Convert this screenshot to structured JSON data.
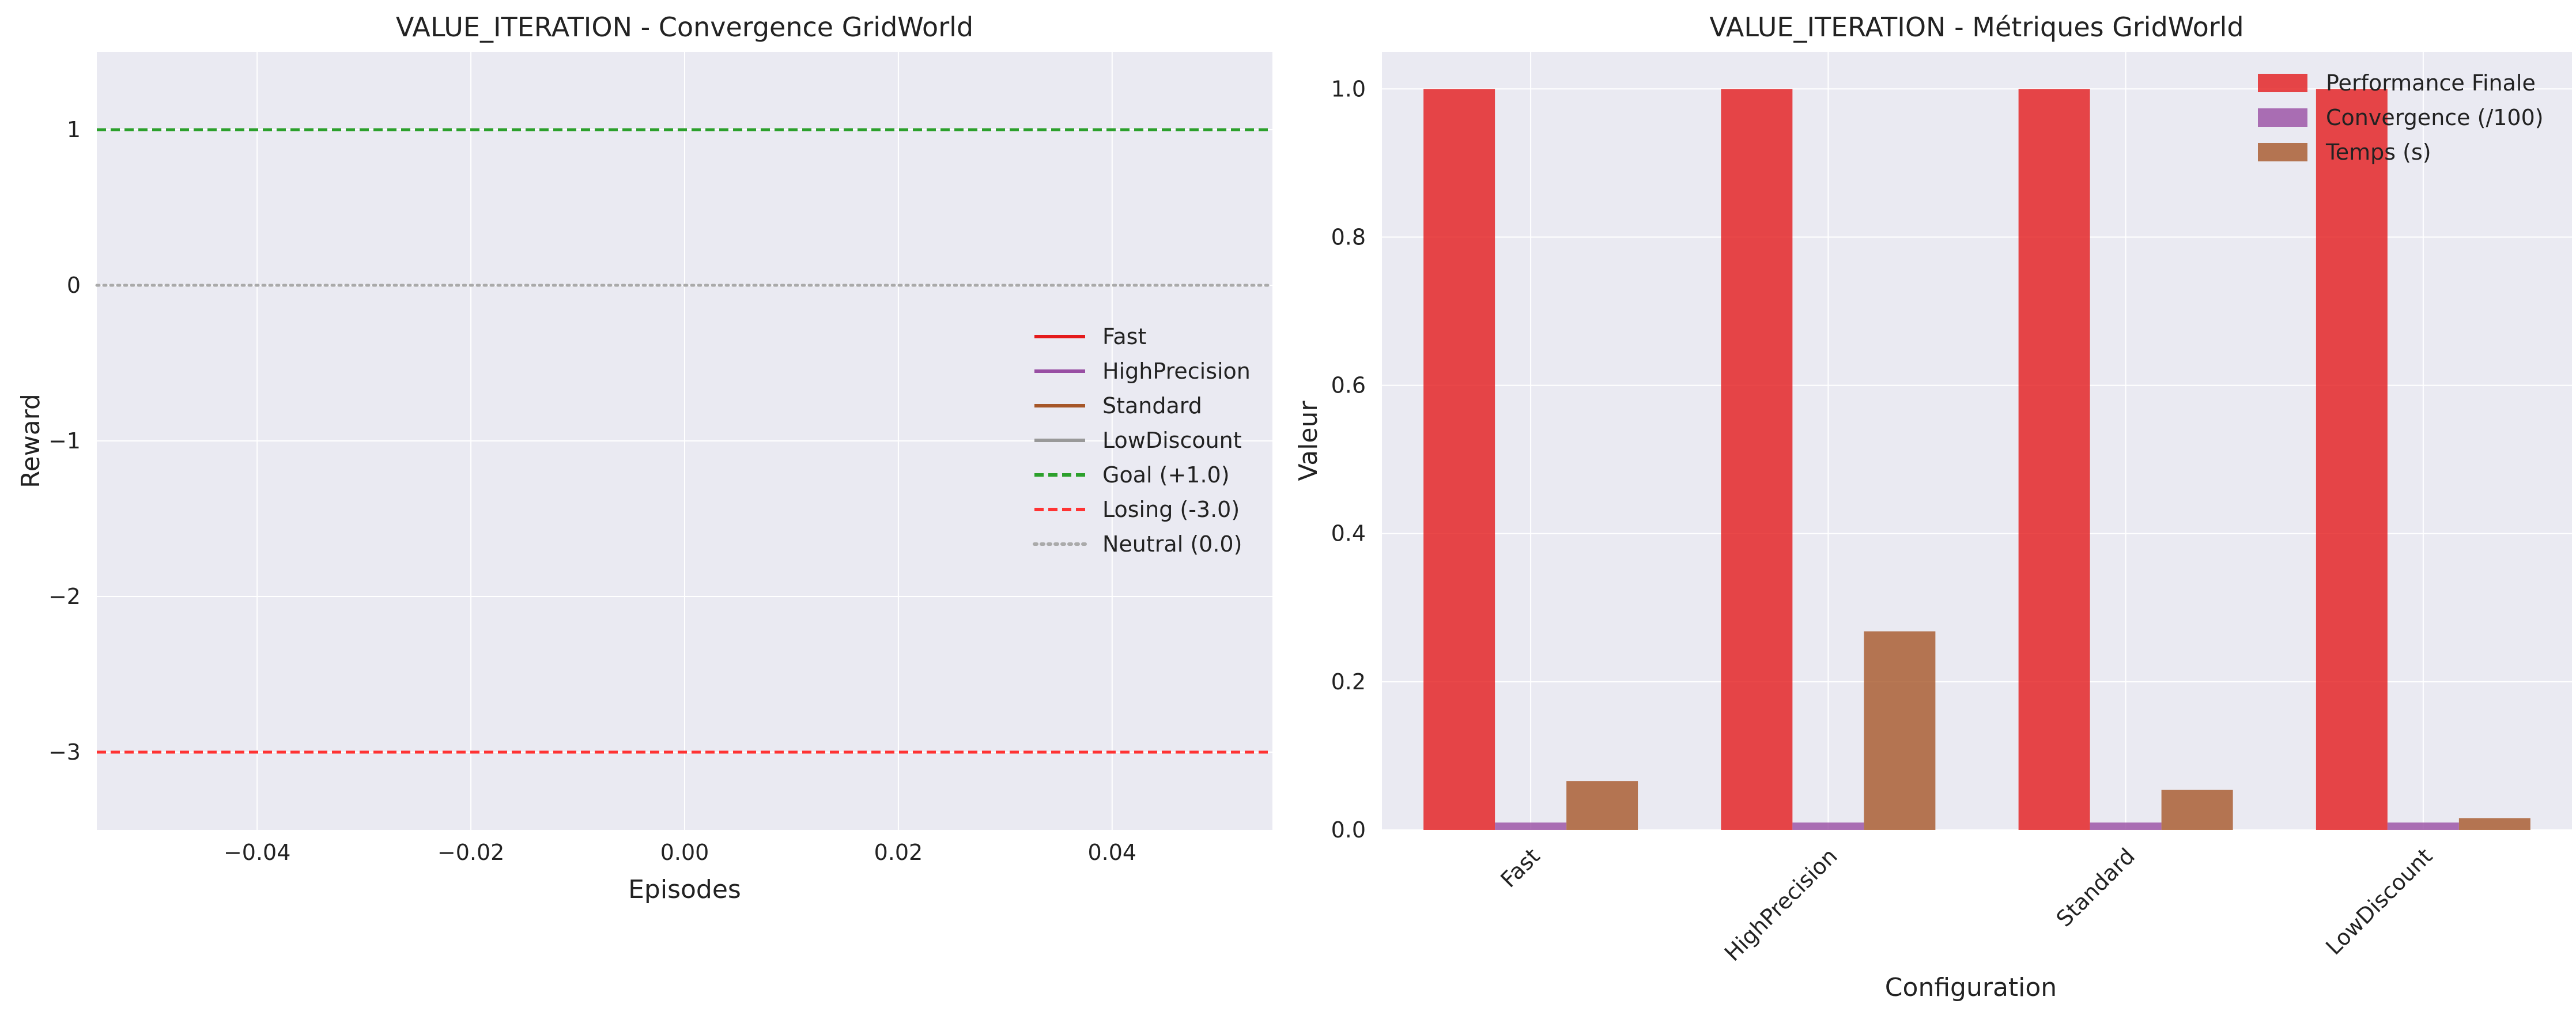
{
  "chart_data": [
    {
      "type": "line",
      "title": "VALUE_ITERATION - Convergence GridWorld",
      "xlabel": "Episodes",
      "ylabel": "Reward",
      "xlim": [
        -0.055,
        0.055
      ],
      "ylim": [
        -3.5,
        1.5
      ],
      "xticks": [
        -0.04,
        -0.02,
        0.0,
        0.02,
        0.04
      ],
      "xtick_labels": [
        "−0.04",
        "−0.02",
        "0.00",
        "0.02",
        "0.04"
      ],
      "yticks": [
        1,
        0,
        -1,
        -2,
        -3
      ],
      "ytick_labels": [
        "1",
        "0",
        "−1",
        "−2",
        "−3"
      ],
      "grid": true,
      "legend_position": "center-right",
      "series": [
        {
          "name": "Fast",
          "color": "#e41a1c",
          "style": "solid",
          "values": []
        },
        {
          "name": "HighPrecision",
          "color": "#984ea3",
          "style": "solid",
          "values": []
        },
        {
          "name": "Standard",
          "color": "#a65628",
          "style": "solid",
          "values": []
        },
        {
          "name": "LowDiscount",
          "color": "#999999",
          "style": "solid",
          "values": []
        }
      ],
      "reference_lines": [
        {
          "name": "Goal (+1.0)",
          "y": 1.0,
          "color": "#2ca02c",
          "style": "dashed"
        },
        {
          "name": "Losing (-3.0)",
          "y": -3.0,
          "color": "#ff3333",
          "style": "dashed"
        },
        {
          "name": "Neutral (0.0)",
          "y": 0.0,
          "color": "#aaaaaa",
          "style": "dotted"
        }
      ]
    },
    {
      "type": "bar",
      "title": "VALUE_ITERATION - Métriques GridWorld",
      "xlabel": "Configuration",
      "ylabel": "Valeur",
      "ylim": [
        0,
        1.05
      ],
      "yticks": [
        0.0,
        0.2,
        0.4,
        0.6,
        0.8,
        1.0
      ],
      "ytick_labels": [
        "0.0",
        "0.2",
        "0.4",
        "0.6",
        "0.8",
        "1.0"
      ],
      "grid": true,
      "legend_position": "top-right",
      "categories": [
        "Fast",
        "HighPrecision",
        "Standard",
        "LowDiscount"
      ],
      "series": [
        {
          "name": "Performance Finale",
          "color": "#e41a1c",
          "values": [
            1.0,
            1.0,
            1.0,
            1.0
          ]
        },
        {
          "name": "Convergence (/100)",
          "color": "#984ea3",
          "values": [
            0.01,
            0.01,
            0.01,
            0.01
          ]
        },
        {
          "name": "Temps (s)",
          "color": "#a65628",
          "values": [
            0.066,
            0.268,
            0.054,
            0.016
          ]
        }
      ]
    }
  ]
}
